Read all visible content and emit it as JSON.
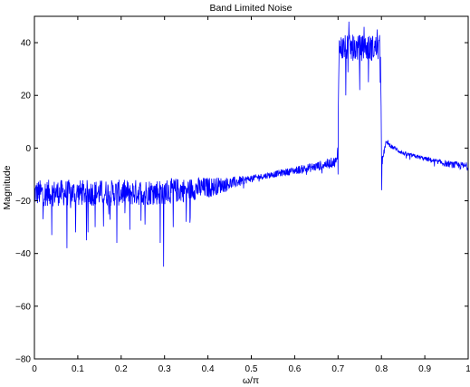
{
  "chart_data": {
    "type": "line",
    "title": "Band Limited Noise",
    "xlabel": "ω/π",
    "ylabel": "Magnitude",
    "xlim": [
      0,
      1
    ],
    "ylim": [
      -80,
      50
    ],
    "xticks": [
      0,
      0.1,
      0.2,
      0.3,
      0.4,
      0.5,
      0.6,
      0.7,
      0.8,
      0.9,
      1
    ],
    "xtick_labels": [
      "0",
      "0.1",
      "0.2",
      "0.3",
      "0.4",
      "0.5",
      "0.6",
      "0.7",
      "0.8",
      "0.9",
      "1"
    ],
    "yticks": [
      -80,
      -60,
      -40,
      -20,
      0,
      20,
      40
    ],
    "ytick_labels": [
      "−80",
      "−60",
      "−40",
      "−20",
      "0",
      "20",
      "40"
    ],
    "grid": false,
    "series": [
      {
        "color": "#0000ff",
        "profile": {
          "x": [
            0,
            0.1,
            0.2,
            0.3,
            0.4,
            0.45,
            0.5,
            0.55,
            0.6,
            0.65,
            0.698,
            0.7,
            0.702,
            0.798,
            0.8,
            0.802,
            0.81,
            0.85,
            0.9,
            0.95,
            1.0
          ],
          "mean": [
            -17,
            -17,
            -17,
            -16.5,
            -15,
            -13.5,
            -11.5,
            -10,
            -8.5,
            -7,
            -5,
            5,
            38,
            38,
            2,
            -5,
            2,
            -2,
            -4,
            -6,
            -7
          ],
          "spread": [
            5,
            5,
            5,
            5,
            4,
            2.5,
            1.2,
            1.2,
            1.5,
            1.8,
            2,
            2,
            5,
            5,
            2,
            1.5,
            0.8,
            0.8,
            0.8,
            1.2,
            1.6
          ]
        },
        "dips": [
          {
            "x": 0.02,
            "y": -27
          },
          {
            "x": 0.04,
            "y": -33
          },
          {
            "x": 0.075,
            "y": -38
          },
          {
            "x": 0.095,
            "y": -32
          },
          {
            "x": 0.12,
            "y": -35
          },
          {
            "x": 0.14,
            "y": -30
          },
          {
            "x": 0.19,
            "y": -36
          },
          {
            "x": 0.22,
            "y": -31
          },
          {
            "x": 0.255,
            "y": -29
          },
          {
            "x": 0.29,
            "y": -36
          },
          {
            "x": 0.298,
            "y": -45
          },
          {
            "x": 0.32,
            "y": -30
          },
          {
            "x": 0.35,
            "y": -28
          },
          {
            "x": 0.7,
            "y": -10
          },
          {
            "x": 0.718,
            "y": 20
          },
          {
            "x": 0.75,
            "y": 22
          },
          {
            "x": 0.77,
            "y": 25
          },
          {
            "x": 0.801,
            "y": -16
          }
        ],
        "peaks": [
          {
            "x": 0.725,
            "y": 48
          },
          {
            "x": 0.76,
            "y": 46
          },
          {
            "x": 0.79,
            "y": 45
          },
          {
            "x": 0.815,
            "y": 3
          }
        ]
      }
    ]
  }
}
